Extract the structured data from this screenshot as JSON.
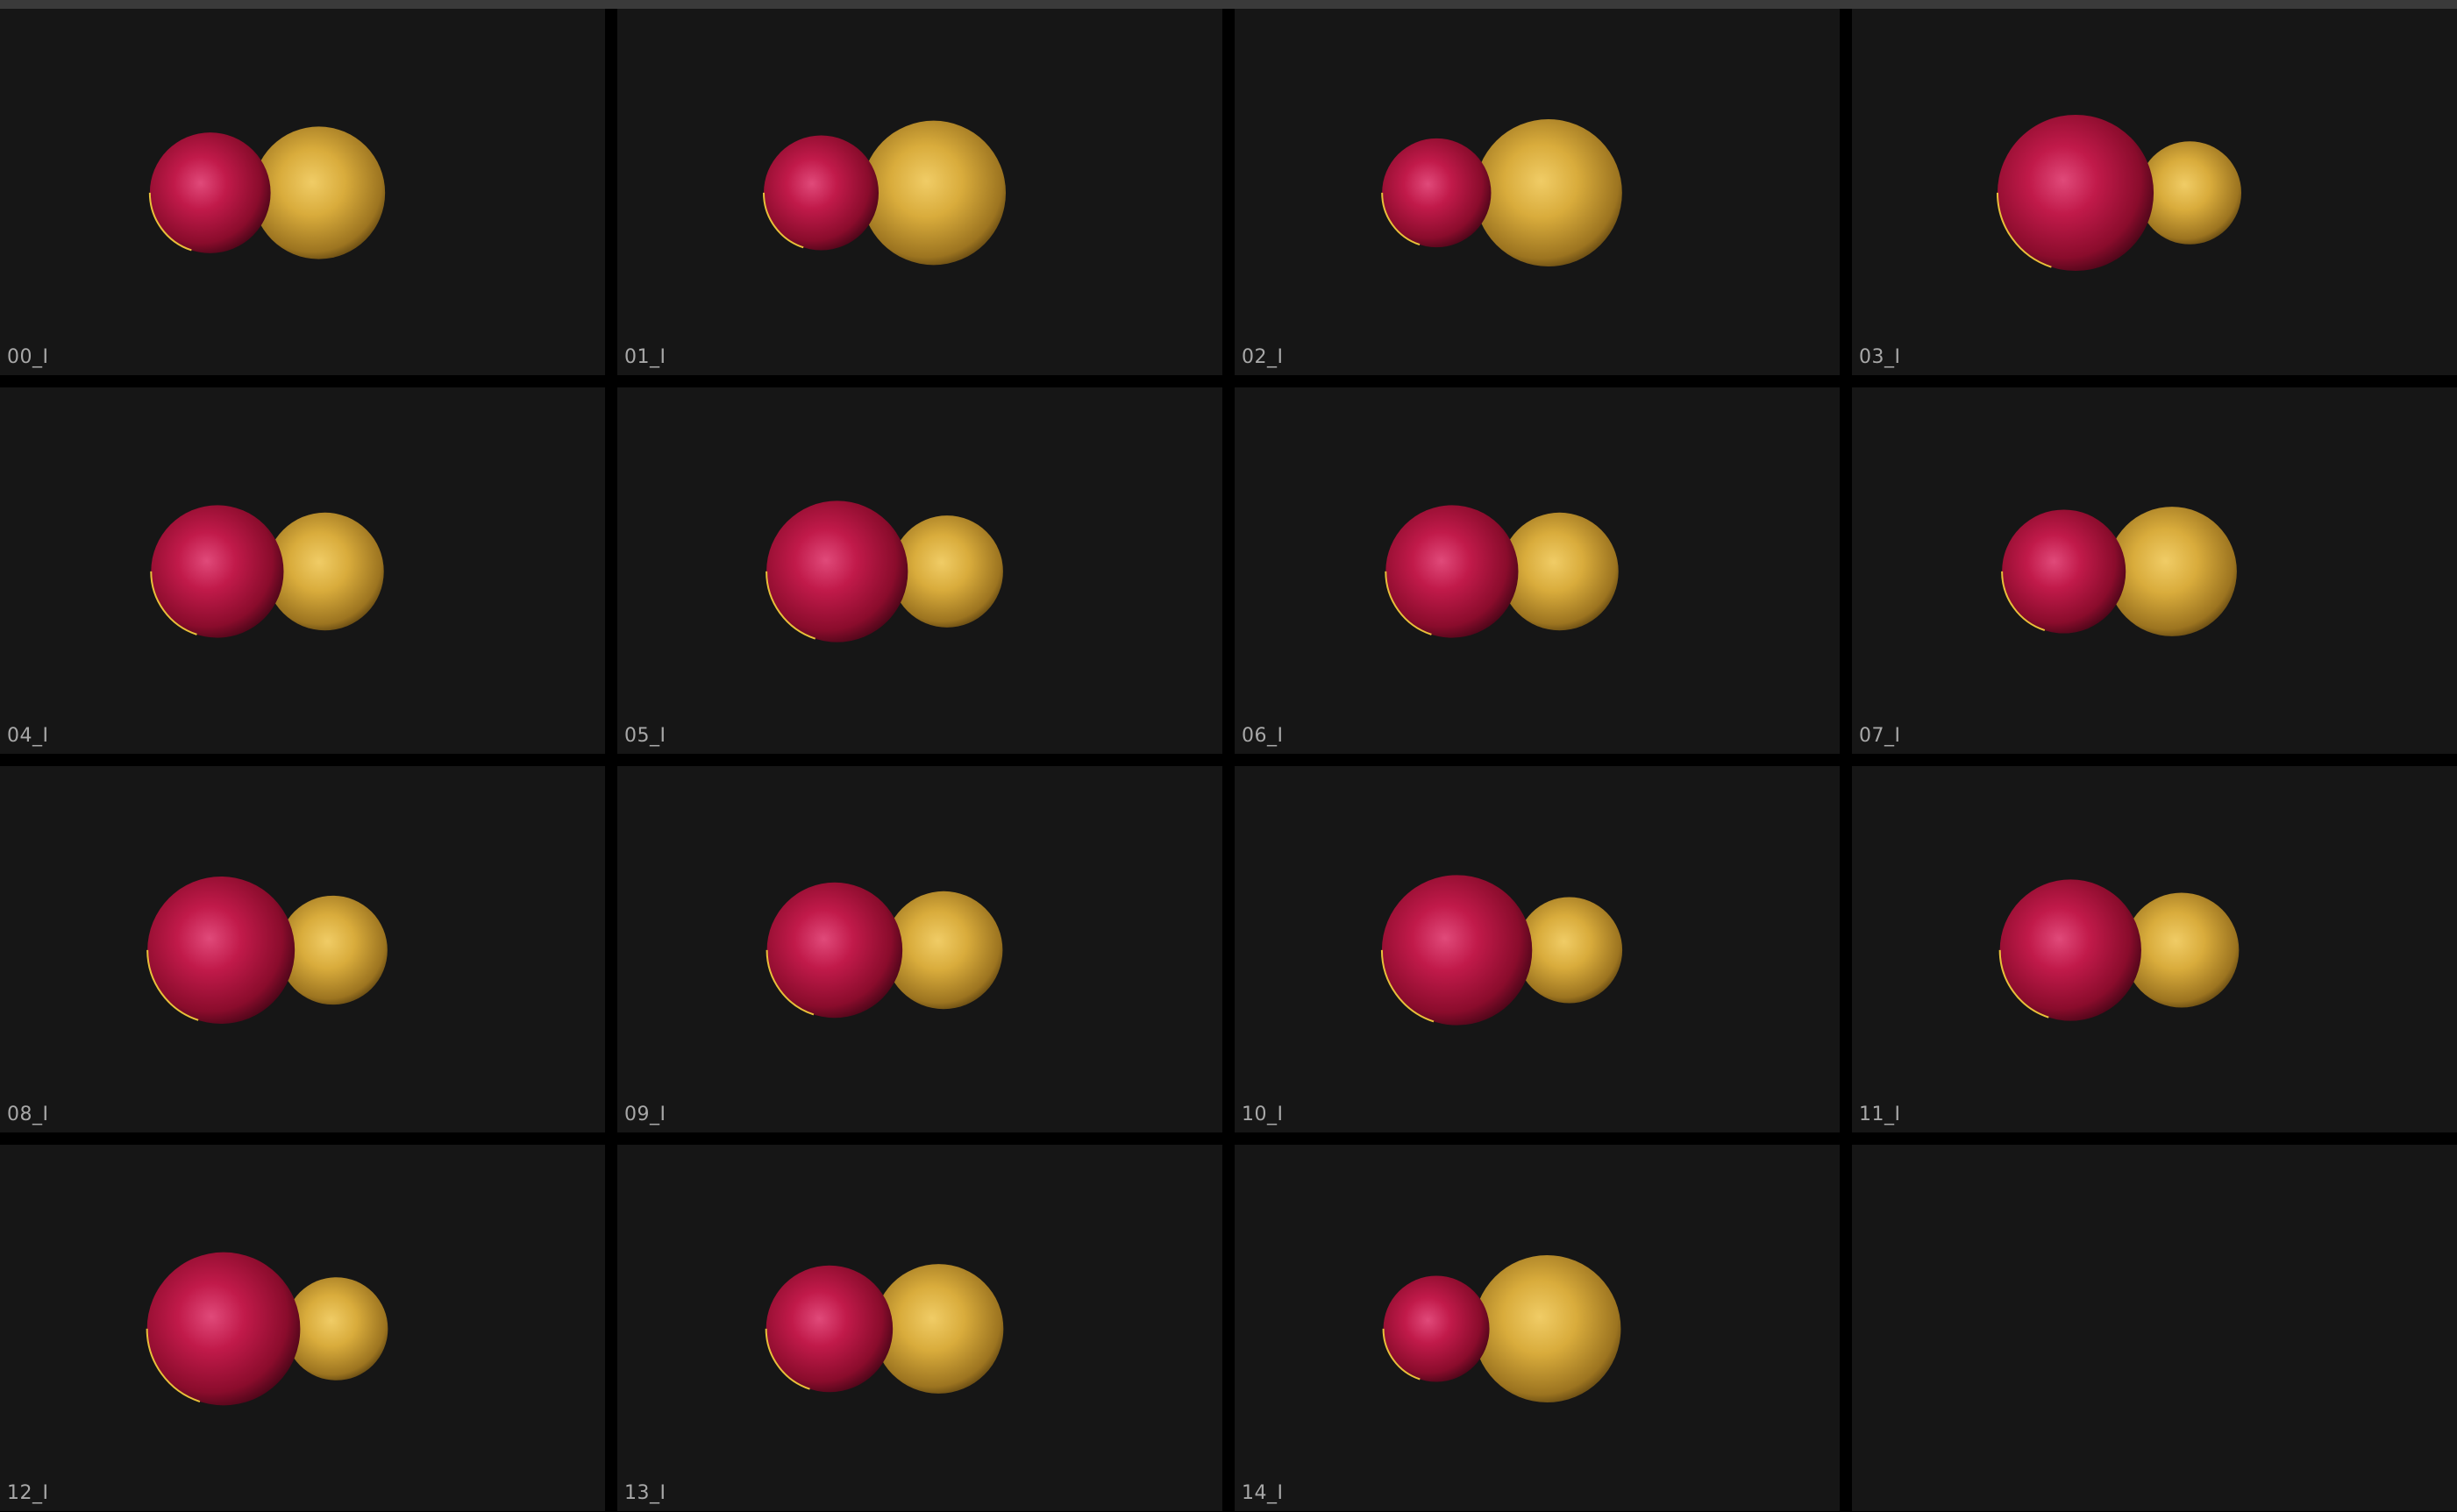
{
  "window": {
    "title": ""
  },
  "colors": {
    "background": "#000000",
    "tile_background": "#161616",
    "label": "#a8a8a8",
    "red_sphere": "#b0123c",
    "gold_sphere": "#d9ac3c"
  },
  "tiles": [
    {
      "label": "00_I",
      "red_r": 0.82,
      "gold_r": 0.9
    },
    {
      "label": "01_I",
      "red_r": 0.78,
      "gold_r": 0.98
    },
    {
      "label": "02_I",
      "red_r": 0.74,
      "gold_r": 1.0
    },
    {
      "label": "03_I",
      "red_r": 1.06,
      "gold_r": 0.7
    },
    {
      "label": "04_I",
      "red_r": 0.9,
      "gold_r": 0.8
    },
    {
      "label": "05_I",
      "red_r": 0.96,
      "gold_r": 0.76
    },
    {
      "label": "06_I",
      "red_r": 0.9,
      "gold_r": 0.8
    },
    {
      "label": "07_I",
      "red_r": 0.84,
      "gold_r": 0.88
    },
    {
      "label": "08_I",
      "red_r": 1.0,
      "gold_r": 0.74
    },
    {
      "label": "09_I",
      "red_r": 0.92,
      "gold_r": 0.8
    },
    {
      "label": "10_I",
      "red_r": 1.02,
      "gold_r": 0.72
    },
    {
      "label": "11_I",
      "red_r": 0.96,
      "gold_r": 0.78
    },
    {
      "label": "12_I",
      "red_r": 1.04,
      "gold_r": 0.7
    },
    {
      "label": "13_I",
      "red_r": 0.86,
      "gold_r": 0.88
    },
    {
      "label": "14_I",
      "red_r": 0.72,
      "gold_r": 1.0
    },
    {
      "label": "",
      "red_r": 0,
      "gold_r": 0
    }
  ]
}
